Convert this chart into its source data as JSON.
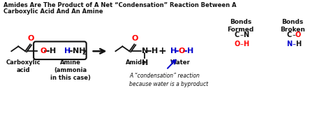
{
  "title_line1": "Amides Are The Product of A Net “Condensation” Reaction Between A",
  "title_line2": "Carboxylic Acid And An Amine",
  "bg_color": "#ffffff",
  "label_carboxylic": "Carboxylic\nacid",
  "label_amine": "Amine\n(ammonia\nin this case)",
  "label_amide": "Amide",
  "label_water": "Water",
  "bonds_formed_header": "Bonds\nFormed",
  "bonds_broken_header": "Bonds\nBroken",
  "annotation": "A “condensation” reaction\nbecause water is a byproduct",
  "red": "#ff0000",
  "blue": "#0000cd",
  "black": "#111111",
  "gray": "#555555"
}
